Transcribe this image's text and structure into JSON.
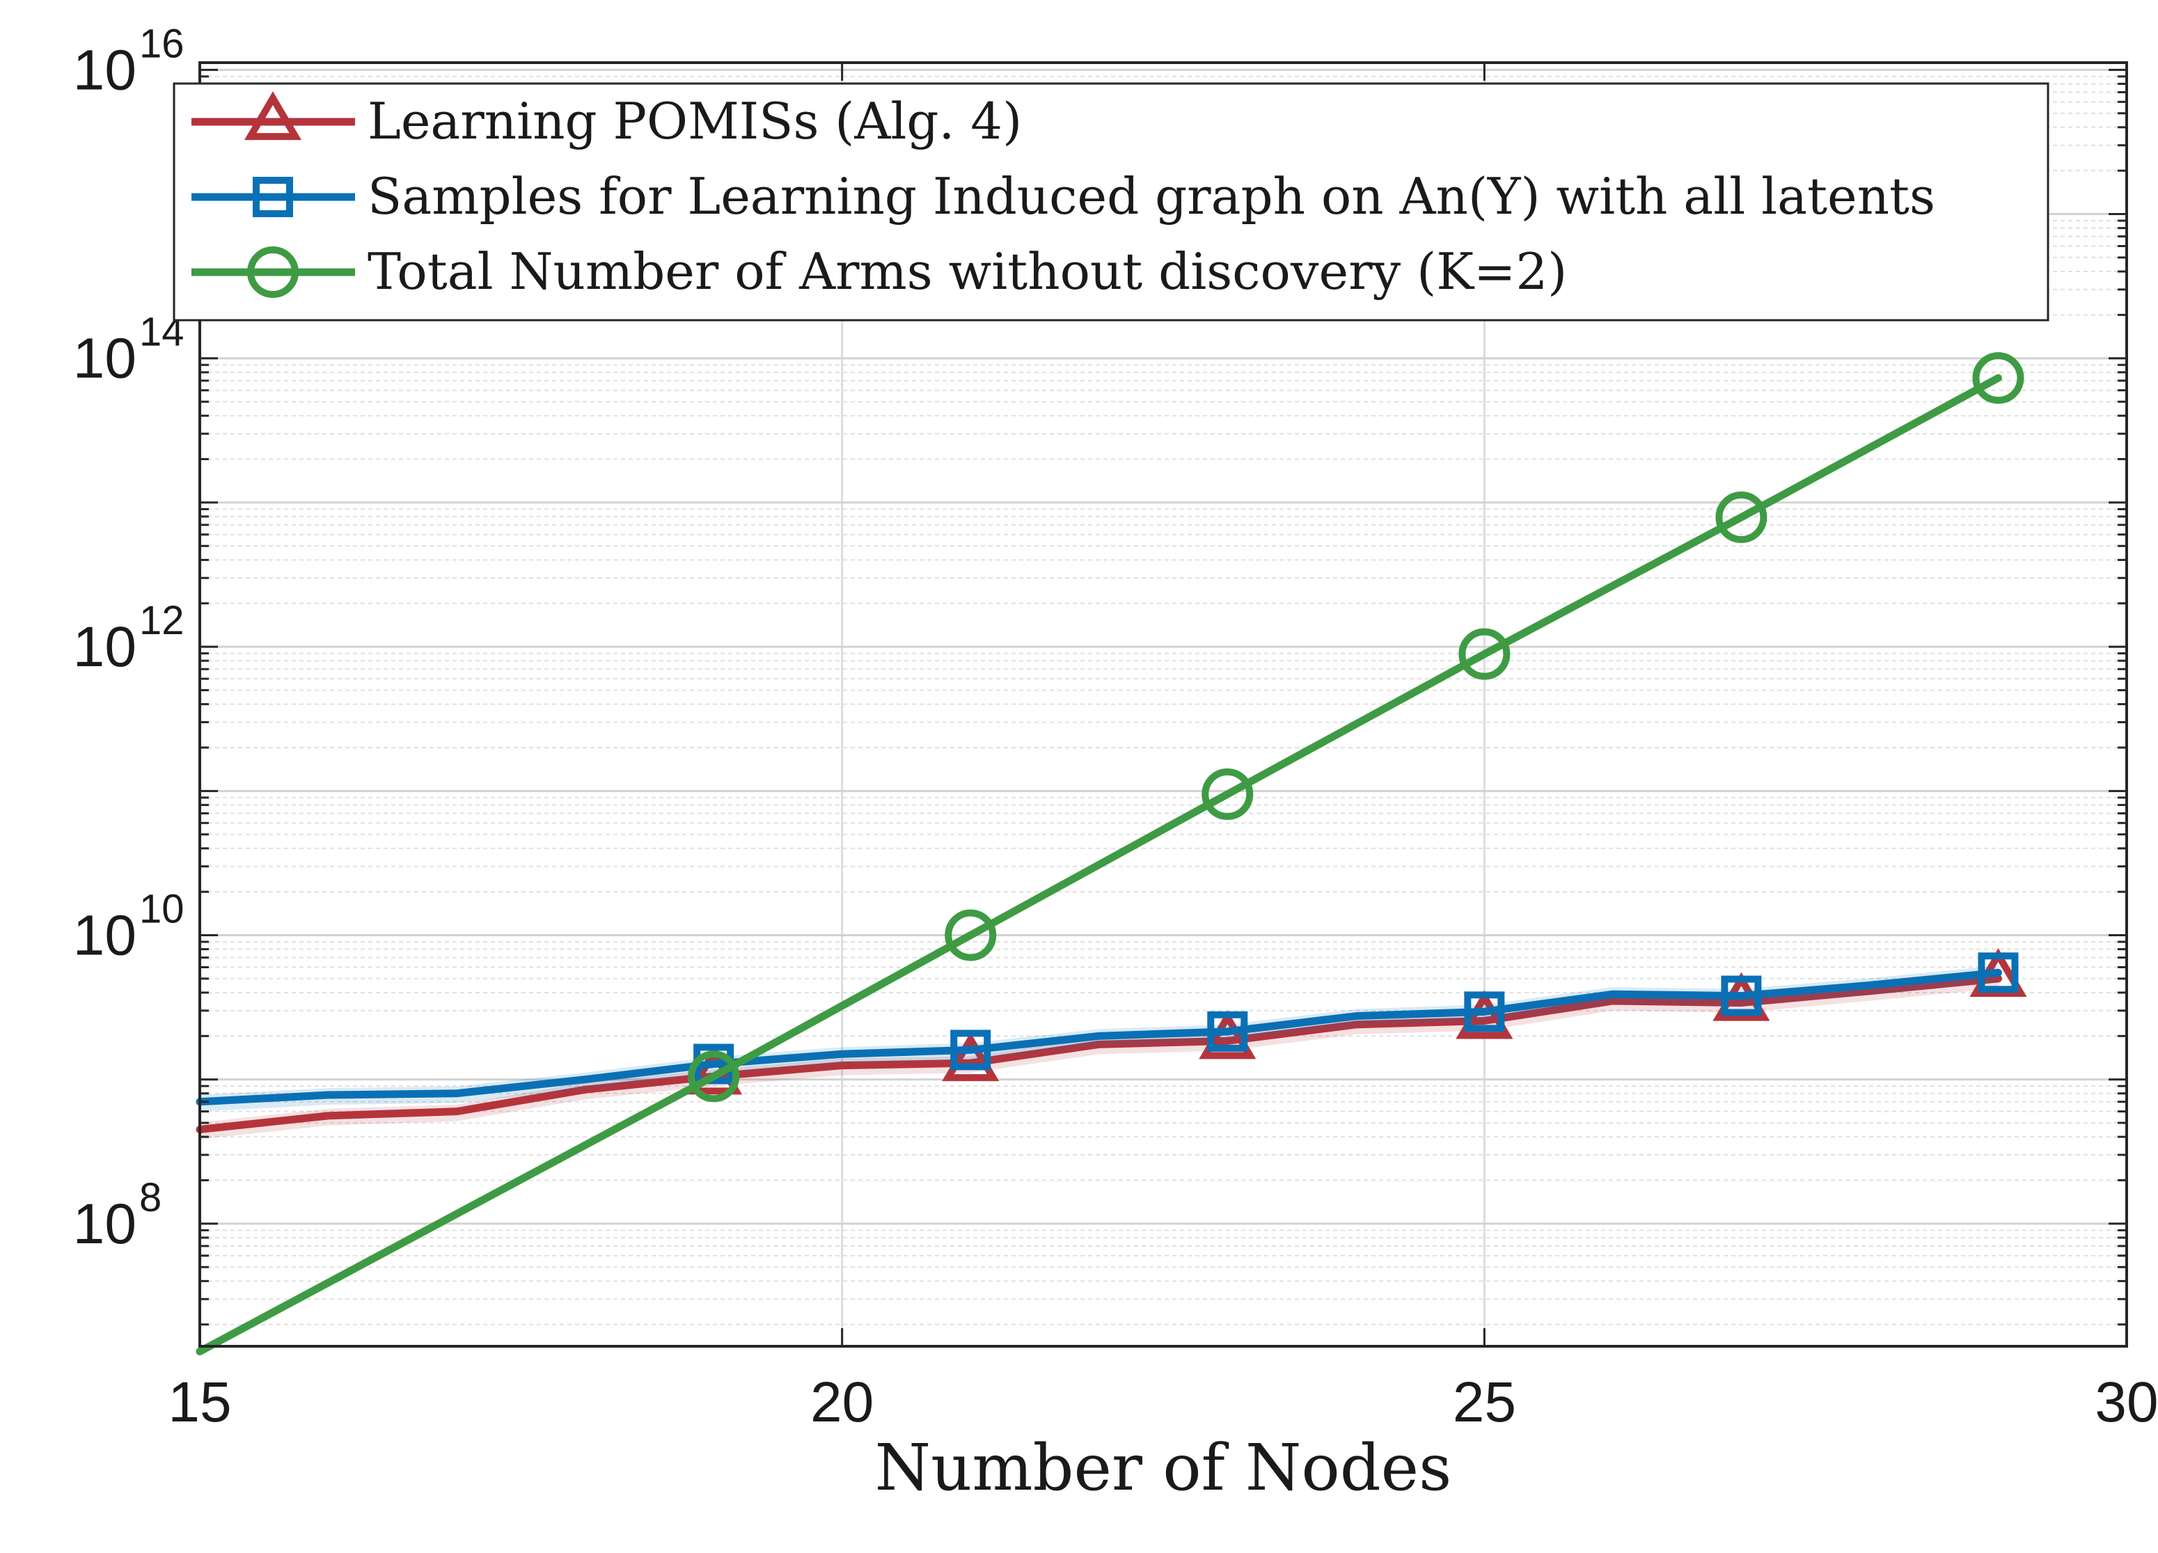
{
  "chart_data": {
    "type": "line",
    "title": "",
    "xlabel": "Number of Nodes",
    "ylabel": "",
    "yscale": "log",
    "xlim": [
      15,
      30
    ],
    "ylim_log10": [
      7.15,
      16.05
    ],
    "xticks": [
      15,
      20,
      25,
      30
    ],
    "xtick_labels": [
      "15",
      "20",
      "25",
      "30"
    ],
    "yticks_log10": [
      8,
      10,
      12,
      14,
      16
    ],
    "ytick_base": "10",
    "ytick_exponents": [
      "8",
      "10",
      "12",
      "14",
      "16"
    ],
    "grid": true,
    "legend_position": "top-left",
    "series": [
      {
        "name": "Learning POMISs (Alg. 4)",
        "color": "#b5343c",
        "marker": "triangle",
        "x": [
          15,
          16,
          17,
          18,
          19,
          20,
          21,
          22,
          23,
          24,
          25,
          26,
          27,
          28,
          29
        ],
        "y": [
          450000000.0,
          560000000.0,
          600000000.0,
          850000000.0,
          1050000000.0,
          1250000000.0,
          1300000000.0,
          1750000000.0,
          1850000000.0,
          2400000000.0,
          2550000000.0,
          3500000000.0,
          3400000000.0,
          4100000000.0,
          5000000000.0
        ],
        "marker_x": [
          19,
          21,
          23,
          25,
          27,
          29
        ]
      },
      {
        "name": "Samples for Learning Induced graph on An(Y) with all latents",
        "color": "#0a70b5",
        "marker": "square",
        "x": [
          15,
          16,
          17,
          18,
          19,
          20,
          21,
          22,
          23,
          24,
          25,
          26,
          27,
          28,
          29
        ],
        "y": [
          700000000.0,
          780000000.0,
          800000000.0,
          1000000000.0,
          1280000000.0,
          1500000000.0,
          1600000000.0,
          2000000000.0,
          2150000000.0,
          2750000000.0,
          2950000000.0,
          3900000000.0,
          3800000000.0,
          4500000000.0,
          5500000000.0
        ],
        "marker_x": [
          19,
          21,
          23,
          25,
          27,
          29
        ]
      },
      {
        "name": "Total Number of Arms without discovery (K=2)",
        "color": "#3e9b44",
        "marker": "circle",
        "x": [
          15,
          19,
          21,
          23,
          25,
          27,
          29
        ],
        "y": [
          13000000.0,
          1050000000.0,
          10000000000.0,
          95000000000.0,
          890000000000.0,
          7900000000000.0,
          73000000000000.0
        ],
        "marker_x": [
          19,
          21,
          23,
          25,
          27,
          29
        ]
      }
    ]
  }
}
